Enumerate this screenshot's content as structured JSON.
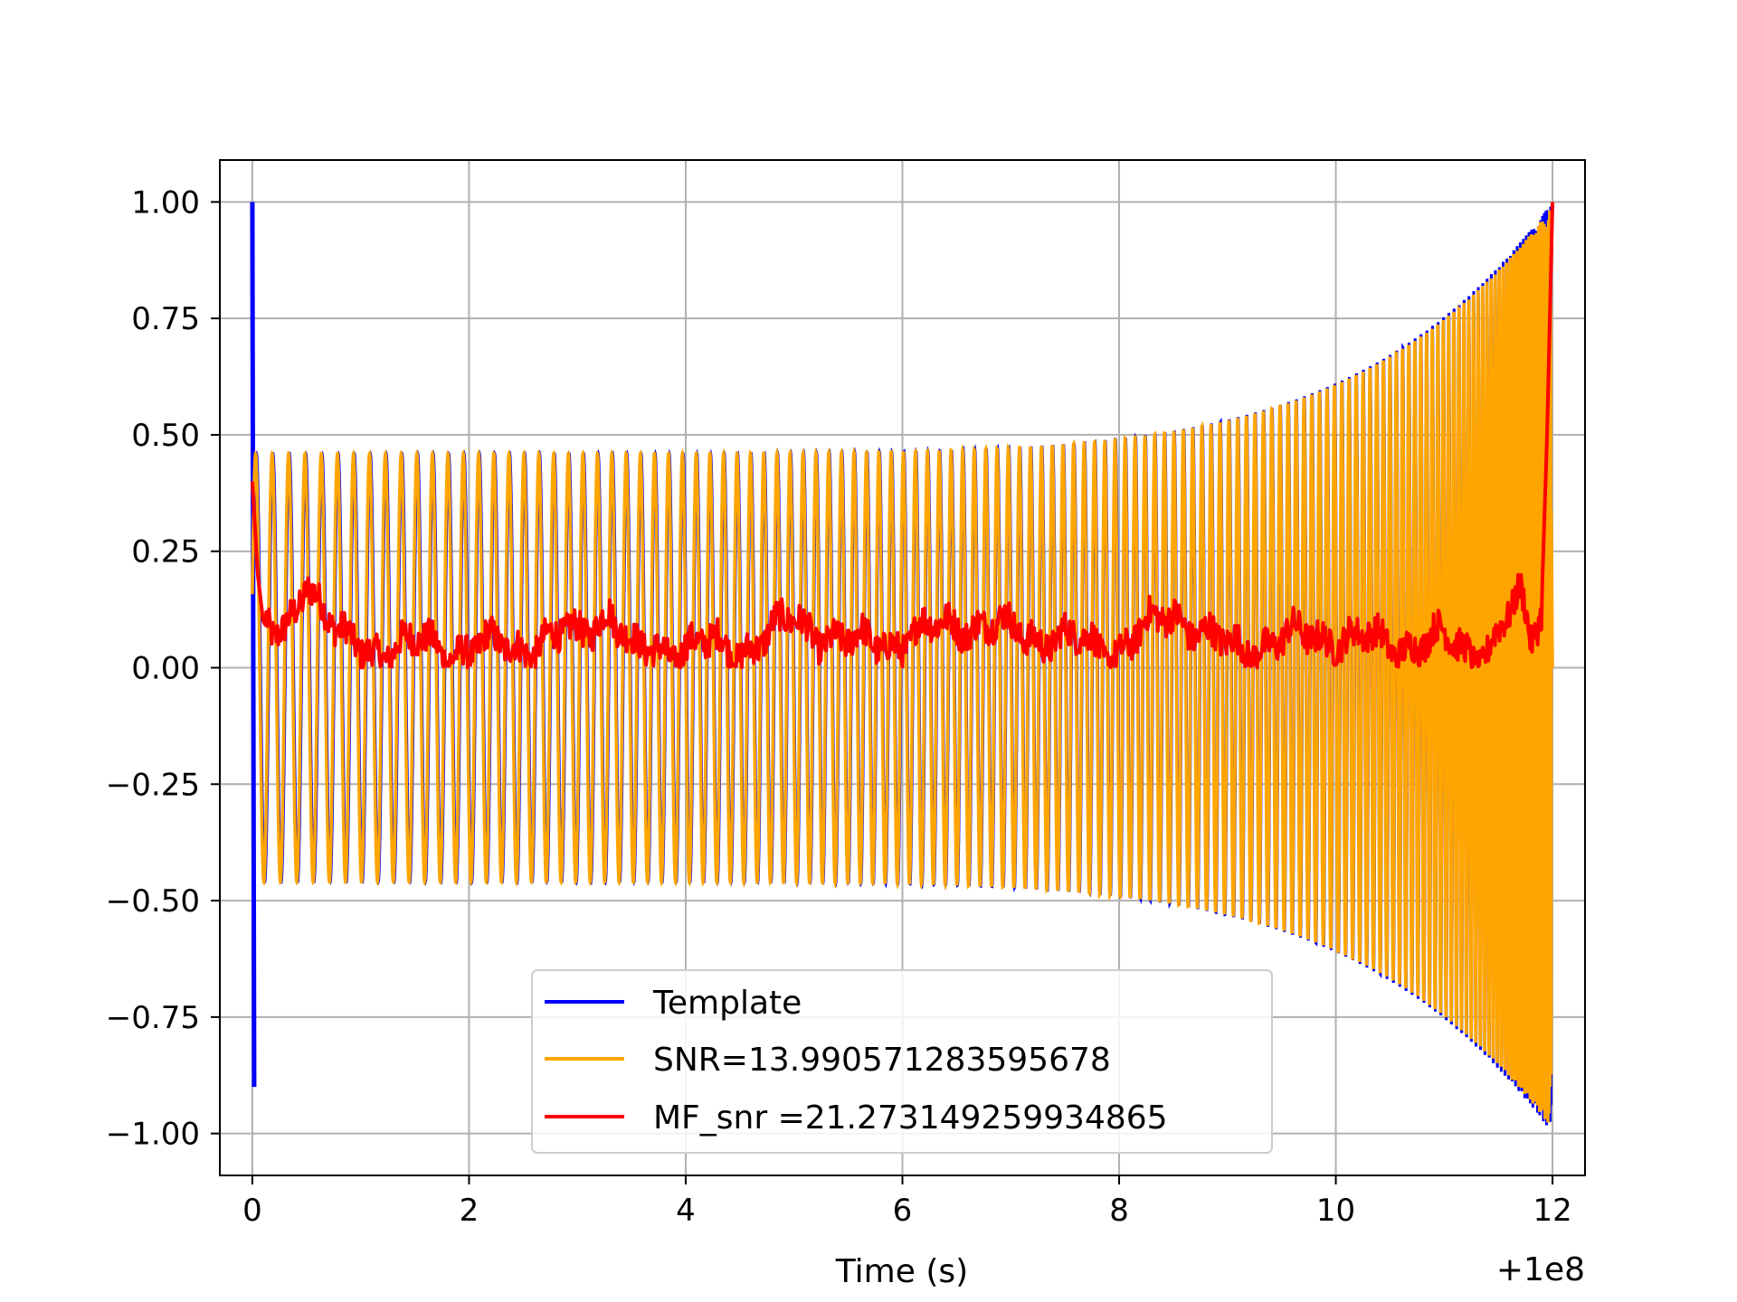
{
  "chart_data": {
    "type": "line",
    "title": "",
    "xlabel": "Time (s)",
    "ylabel": "",
    "x_offset_label": "+1e8",
    "xlim": [
      -0.3,
      12.3
    ],
    "ylim": [
      -1.09,
      1.09
    ],
    "x_ticks": [
      0,
      2,
      4,
      6,
      8,
      10,
      12
    ],
    "x_tick_labels": [
      "0",
      "2",
      "4",
      "6",
      "8",
      "10",
      "12"
    ],
    "y_ticks": [
      1.0,
      0.75,
      0.5,
      0.25,
      0.0,
      -0.25,
      -0.5,
      -0.75,
      -1.0
    ],
    "y_tick_labels": [
      "1.00",
      "0.75",
      "0.50",
      "0.25",
      "0.00",
      "−0.25",
      "−0.50",
      "−0.75",
      "−1.00"
    ],
    "grid": true,
    "legend_position": "lower-center",
    "series": [
      {
        "name": "Template",
        "color": "#0000ff",
        "shape": "chirp",
        "t_start": 0.0,
        "t_end": 12.0,
        "start_amplitude": 0.46,
        "end_amplitude": 1.0,
        "cycles": 140,
        "start_spike": [
          1.0,
          -0.9
        ]
      },
      {
        "name": "SNR=13.990571283595678",
        "color": "#ffa500",
        "shape": "chirp",
        "t_start": 0.0,
        "t_end": 12.0,
        "start_amplitude": 0.46,
        "end_amplitude": 0.99,
        "cycles": 140
      },
      {
        "name": "MF_snr =21.273149259934865",
        "color": "#ff0000",
        "shape": "noisy",
        "x": [
          0.0,
          0.05,
          0.1,
          0.2,
          0.3,
          0.5,
          0.8,
          1.0,
          1.5,
          2.0,
          2.5,
          3.0,
          3.3,
          3.5,
          4.0,
          4.5,
          5.0,
          5.5,
          6.0,
          6.5,
          7.0,
          7.5,
          8.0,
          8.5,
          9.0,
          9.5,
          10.0,
          10.5,
          11.0,
          11.3,
          11.5,
          11.7,
          11.8,
          11.9,
          11.95,
          12.0
        ],
        "y": [
          0.4,
          0.2,
          0.1,
          0.06,
          0.07,
          0.2,
          0.06,
          0.04,
          0.05,
          0.04,
          0.05,
          0.07,
          0.13,
          0.03,
          0.05,
          0.04,
          0.1,
          0.05,
          0.06,
          0.1,
          0.08,
          0.06,
          0.04,
          0.12,
          0.04,
          0.06,
          0.07,
          0.05,
          0.06,
          0.03,
          0.07,
          0.15,
          0.05,
          0.14,
          0.5,
          1.0
        ]
      }
    ]
  }
}
